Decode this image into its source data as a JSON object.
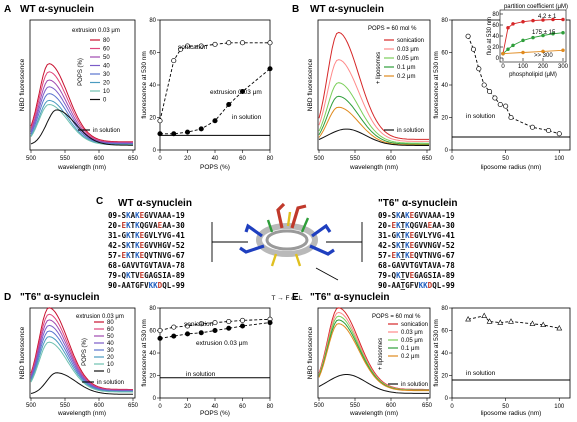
{
  "panels": {
    "A": {
      "letter": "A",
      "title": "WT α-synuclein",
      "spectra": {
        "ylabel": "NBD fluorescence",
        "xlabel": "wavelength (nm)",
        "xticks": [
          "500",
          "550",
          "600",
          "650"
        ],
        "legend_title": "extrusion 0.03 μm",
        "legend_axis": "POPS (%)",
        "legend_values": [
          "80",
          "60",
          "50",
          "40",
          "30",
          "20",
          "10",
          "0"
        ],
        "solution_label": "in solution"
      },
      "binding": {
        "ylabel": "fluorescence at 530 nm",
        "xlabel": "POPS (%)",
        "xticks": [
          "0",
          "20",
          "40",
          "60",
          "80"
        ],
        "yticks": [
          "0",
          "20",
          "40",
          "60",
          "80"
        ],
        "label_sonication": "sonication",
        "label_extrusion": "extrusion 0.03 μm",
        "label_solution": "in solution"
      }
    },
    "B": {
      "letter": "B",
      "title": "WT α-synuclein",
      "spectra": {
        "ylabel": "NBD fluorescence",
        "xlabel": "wavelength (nm)",
        "xticks": [
          "500",
          "550",
          "600",
          "650"
        ],
        "condition": "POPS = 60 mol %",
        "liposomes_label": "+ liposomes",
        "legend_values": [
          "sonication",
          "0.03 μm",
          "0.05 μm",
          "0.1 μm",
          "0.2 μm"
        ],
        "solution_label": "in solution"
      },
      "radius": {
        "ylabel": "fluorescence at 530 nm",
        "xlabel": "liposome radius (nm)",
        "xticks": [
          "0",
          "50",
          "100"
        ],
        "yticks": [
          "0",
          "20",
          "40",
          "60",
          "80"
        ],
        "label_solution": "in solution"
      },
      "inset": {
        "title": "partition coefficient (μM)",
        "ylabel": "fluo at 530 nm",
        "xlabel": "phospholipid (μM)",
        "xticks": [
          "0",
          "100",
          "200",
          "300"
        ],
        "yticks": [
          "0",
          "20",
          "40",
          "60",
          "80"
        ],
        "values": [
          "4.2 ± 1",
          "175 ± 15",
          ">> 300"
        ]
      }
    },
    "C": {
      "letter": "C",
      "wt_title": "WT α-synuclein",
      "t6_title": "\"T6\" α-synuclein",
      "wt_sequences": [
        "09-SKAKEGVVAAA-19",
        "20-EKTKQGVAEAA-30",
        "31-GKTKEGVLYVG-41",
        "42-SKTKEGVVHGV-52",
        "57-EKTKEQVTNVG-67",
        "68-GAVVTGVTAVA-78",
        "79-QKTVEGAGSIA-89",
        "90-AATGFVKKDQL-99"
      ],
      "t6_sequences": [
        "09-SKAKEGVVAAA-19",
        "20-EKTKQGVAEAA-30",
        "31-GKTKEGVLYVG-41",
        "42-SKTKEGVVNGV-52",
        "57-EKTKEQVTNVG-67",
        "68-GAVVTGVTAVA-78",
        "79-QKTVEGAGSIA-89",
        "90-AATGFVKKDQL-99"
      ],
      "mutation_label": "T → F or L"
    },
    "D": {
      "letter": "D",
      "title": "\"T6\" α-synuclein",
      "spectra": {
        "ylabel": "NBD fluorescence",
        "xlabel": "wavelength (nm)",
        "xticks": [
          "500",
          "550",
          "600",
          "650"
        ],
        "legend_title": "extrusion 0.03 μm",
        "legend_axis": "POPS (%)",
        "legend_values": [
          "80",
          "60",
          "50",
          "40",
          "30",
          "20",
          "10",
          "0"
        ],
        "solution_label": "in solution"
      },
      "binding": {
        "ylabel": "fluorescence at 530 nm",
        "xlabel": "POPS (%)",
        "xticks": [
          "0",
          "20",
          "40",
          "60",
          "80"
        ],
        "yticks": [
          "0",
          "20",
          "40",
          "60",
          "80"
        ],
        "label_sonication": "sonication",
        "label_extrusion": "extrusion 0.03 μm",
        "label_solution": "in solution"
      }
    },
    "E": {
      "letter": "E",
      "title": "\"T6\" α-synuclein",
      "spectra": {
        "ylabel": "NBD fluorescence",
        "xlabel": "wavelength (nm)",
        "xticks": [
          "500",
          "550",
          "600",
          "650"
        ],
        "condition": "POPS = 60 mol %",
        "liposomes_label": "+ liposomes",
        "legend_values": [
          "sonication",
          "0.03 μm",
          "0.05 μm",
          "0.1 μm",
          "0.2 μm"
        ],
        "solution_label": "in solution"
      },
      "radius": {
        "ylabel": "fluorescence at 530 nm",
        "xlabel": "liposome radius (nm)",
        "xticks": [
          "0",
          "50",
          "100"
        ],
        "yticks": [
          "0",
          "20",
          "40",
          "60",
          "80"
        ],
        "label_solution": "in solution"
      }
    }
  },
  "colors": {
    "pops_gradient": [
      "#c8102e",
      "#e0457b",
      "#a04ab0",
      "#7b5cc8",
      "#5a74cf",
      "#4a9bc0",
      "#6fc1b0",
      "#111111"
    ],
    "liposome": [
      "#d62728",
      "#ff8a8a",
      "#7bcf5a",
      "#2e9e3a",
      "#e08a1e"
    ],
    "solution": "#111111",
    "lys": "#1f5fbf",
    "glu": "#c0392b",
    "thr_mut": "#000000"
  },
  "chart_data": [
    {
      "id": "A-binding",
      "type": "scatter",
      "xlabel": "POPS (%)",
      "ylabel": "fluorescence at 530 nm",
      "xlim": [
        0,
        80
      ],
      "ylim": [
        0,
        80
      ],
      "series": [
        {
          "name": "sonication",
          "x": [
            0,
            10,
            15,
            20,
            30,
            40,
            50,
            60,
            80
          ],
          "y": [
            18,
            55,
            62,
            64,
            64,
            65,
            66,
            66,
            66
          ]
        },
        {
          "name": "extrusion 0.03 μm",
          "x": [
            0,
            10,
            20,
            30,
            40,
            50,
            60,
            80
          ],
          "y": [
            10,
            10,
            11,
            13,
            18,
            28,
            36,
            50
          ]
        },
        {
          "name": "in solution",
          "x": [
            0,
            80
          ],
          "y": [
            9,
            9
          ]
        }
      ]
    },
    {
      "id": "B-radius",
      "type": "scatter",
      "xlabel": "liposome radius (nm)",
      "ylabel": "fluorescence at 530 nm",
      "xlim": [
        0,
        110
      ],
      "ylim": [
        0,
        80
      ],
      "series": [
        {
          "name": "",
          "x": [
            15,
            20,
            25,
            30,
            35,
            40,
            45,
            50,
            55,
            75,
            90,
            100
          ],
          "y": [
            70,
            62,
            50,
            40,
            36,
            32,
            28,
            27,
            20,
            14,
            12,
            10
          ]
        },
        {
          "name": "in solution",
          "x": [
            0,
            110
          ],
          "y": [
            8,
            8
          ]
        }
      ]
    },
    {
      "id": "B-inset",
      "type": "scatter",
      "xlabel": "phospholipid (μM)",
      "ylabel": "fluo at 530 nm",
      "xlim": [
        0,
        300
      ],
      "ylim": [
        0,
        80
      ],
      "series": [
        {
          "name": "4.2 ± 1",
          "x": [
            0,
            25,
            50,
            100,
            150,
            200,
            250,
            300
          ],
          "y": [
            8,
            55,
            62,
            66,
            68,
            69,
            70,
            70
          ]
        },
        {
          "name": "175 ± 15",
          "x": [
            0,
            25,
            50,
            100,
            150,
            200,
            250,
            300
          ],
          "y": [
            8,
            16,
            23,
            32,
            37,
            41,
            44,
            46
          ]
        },
        {
          "name": ">> 300",
          "x": [
            0,
            100,
            200,
            300
          ],
          "y": [
            8,
            10,
            12,
            14
          ]
        }
      ]
    },
    {
      "id": "D-binding",
      "type": "scatter",
      "xlabel": "POPS (%)",
      "ylabel": "fluorescence at 530 nm",
      "xlim": [
        0,
        80
      ],
      "ylim": [
        0,
        80
      ],
      "series": [
        {
          "name": "sonication",
          "x": [
            0,
            10,
            20,
            30,
            40,
            50,
            60,
            80
          ],
          "y": [
            60,
            63,
            64,
            66,
            67,
            68,
            69,
            70
          ]
        },
        {
          "name": "extrusion 0.03 μm",
          "x": [
            0,
            10,
            20,
            30,
            40,
            50,
            60,
            80
          ],
          "y": [
            53,
            55,
            57,
            58,
            60,
            62,
            64,
            67
          ]
        },
        {
          "name": "in solution",
          "x": [
            0,
            80
          ],
          "y": [
            18,
            18
          ]
        }
      ]
    },
    {
      "id": "E-radius",
      "type": "scatter",
      "xlabel": "liposome radius (nm)",
      "ylabel": "fluorescence at 530 nm",
      "xlim": [
        0,
        110
      ],
      "ylim": [
        0,
        80
      ],
      "series": [
        {
          "name": "",
          "x": [
            15,
            30,
            35,
            45,
            55,
            75,
            85,
            100
          ],
          "y": [
            70,
            73,
            68,
            67,
            68,
            66,
            65,
            62
          ]
        },
        {
          "name": "in solution",
          "x": [
            0,
            110
          ],
          "y": [
            16,
            16
          ]
        }
      ]
    }
  ]
}
